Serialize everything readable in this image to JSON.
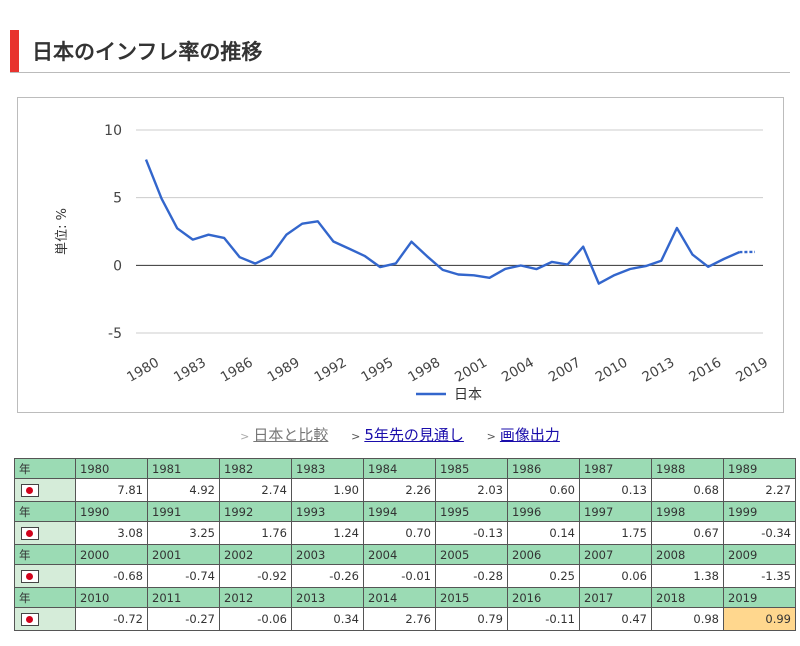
{
  "page_title": "日本のインフレ率の推移",
  "links": [
    {
      "label": "日本と比較",
      "style": "gray"
    },
    {
      "label": "5年先の見通し",
      "style": "blue"
    },
    {
      "label": "画像出力",
      "style": "blue"
    }
  ],
  "table": {
    "year_label": "年",
    "rows": [
      {
        "years": [
          "1980",
          "1981",
          "1982",
          "1983",
          "1984",
          "1985",
          "1986",
          "1987",
          "1988",
          "1989"
        ],
        "values": [
          "7.81",
          "4.92",
          "2.74",
          "1.90",
          "2.26",
          "2.03",
          "0.60",
          "0.13",
          "0.68",
          "2.27"
        ]
      },
      {
        "years": [
          "1990",
          "1991",
          "1992",
          "1993",
          "1994",
          "1995",
          "1996",
          "1997",
          "1998",
          "1999"
        ],
        "values": [
          "3.08",
          "3.25",
          "1.76",
          "1.24",
          "0.70",
          "-0.13",
          "0.14",
          "1.75",
          "0.67",
          "-0.34"
        ]
      },
      {
        "years": [
          "2000",
          "2001",
          "2002",
          "2003",
          "2004",
          "2005",
          "2006",
          "2007",
          "2008",
          "2009"
        ],
        "values": [
          "-0.68",
          "-0.74",
          "-0.92",
          "-0.26",
          "-0.01",
          "-0.28",
          "0.25",
          "0.06",
          "1.38",
          "-1.35"
        ]
      },
      {
        "years": [
          "2010",
          "2011",
          "2012",
          "2013",
          "2014",
          "2015",
          "2016",
          "2017",
          "2018",
          "2019"
        ],
        "values": [
          "-0.72",
          "-0.27",
          "-0.06",
          "0.34",
          "2.76",
          "0.79",
          "-0.11",
          "0.47",
          "0.98",
          "0.99"
        ]
      }
    ]
  },
  "colors": {
    "line": "#3366cc",
    "accent": "#e8332e",
    "header_bg": "#9bdbb4",
    "highlight": "#ffd78e"
  },
  "chart_data": {
    "type": "line",
    "title": "",
    "ylabel": "単位: %",
    "xlabel": "",
    "ylim": [
      -5,
      10
    ],
    "yticks": [
      10,
      5,
      0,
      -5
    ],
    "xtick_labels": [
      "1980",
      "1983",
      "1986",
      "1989",
      "1992",
      "1995",
      "1998",
      "2001",
      "2004",
      "2007",
      "2010",
      "2013",
      "2016",
      "2019"
    ],
    "legend_position": "bottom",
    "x": [
      1980,
      1981,
      1982,
      1983,
      1984,
      1985,
      1986,
      1987,
      1988,
      1989,
      1990,
      1991,
      1992,
      1993,
      1994,
      1995,
      1996,
      1997,
      1998,
      1999,
      2000,
      2001,
      2002,
      2003,
      2004,
      2005,
      2006,
      2007,
      2008,
      2009,
      2010,
      2011,
      2012,
      2013,
      2014,
      2015,
      2016,
      2017,
      2018,
      2019
    ],
    "series": [
      {
        "name": "日本",
        "values": [
          7.81,
          4.92,
          2.74,
          1.9,
          2.26,
          2.03,
          0.6,
          0.13,
          0.68,
          2.27,
          3.08,
          3.25,
          1.76,
          1.24,
          0.7,
          -0.13,
          0.14,
          1.75,
          0.67,
          -0.34,
          -0.68,
          -0.74,
          -0.92,
          -0.26,
          -0.01,
          -0.28,
          0.25,
          0.06,
          1.38,
          -1.35,
          -0.72,
          -0.27,
          -0.06,
          0.34,
          2.76,
          0.79,
          -0.11,
          0.47,
          0.98,
          0.99
        ],
        "estimated_from": 2019
      }
    ]
  }
}
